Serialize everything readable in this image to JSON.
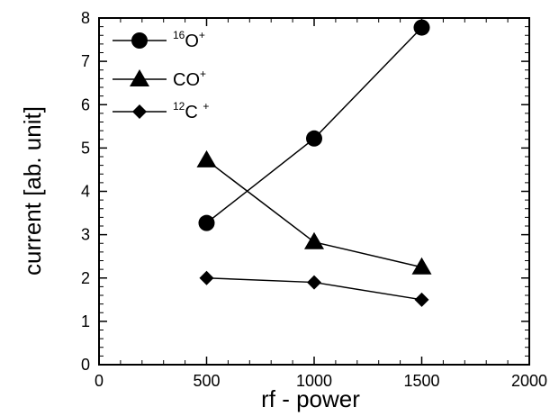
{
  "chart_data": {
    "type": "line",
    "xlabel": "rf - power",
    "ylabel": "current [ab. unit]",
    "xlim": [
      0,
      2000
    ],
    "ylim": [
      0,
      8
    ],
    "xticks": [
      "0",
      "500",
      "1000",
      "1500",
      "2000"
    ],
    "yticks": [
      "0",
      "1",
      "2",
      "3",
      "4",
      "5",
      "6",
      "7",
      "8"
    ],
    "grid": false,
    "legend_position": "top-left",
    "x": [
      500,
      1000,
      1500
    ],
    "series": [
      {
        "name": "16O+",
        "sup": "16",
        "base": "O",
        "charge": "+",
        "marker": "circle",
        "values": [
          3.27,
          5.22,
          7.78
        ]
      },
      {
        "name": "CO+",
        "sup": "",
        "base": "CO",
        "charge": "+",
        "marker": "triangle",
        "values": [
          4.72,
          2.83,
          2.25
        ]
      },
      {
        "name": "12C +",
        "sup": "12",
        "base": "C ",
        "charge": "+",
        "marker": "diamond",
        "values": [
          2.0,
          1.9,
          1.5
        ]
      }
    ]
  }
}
